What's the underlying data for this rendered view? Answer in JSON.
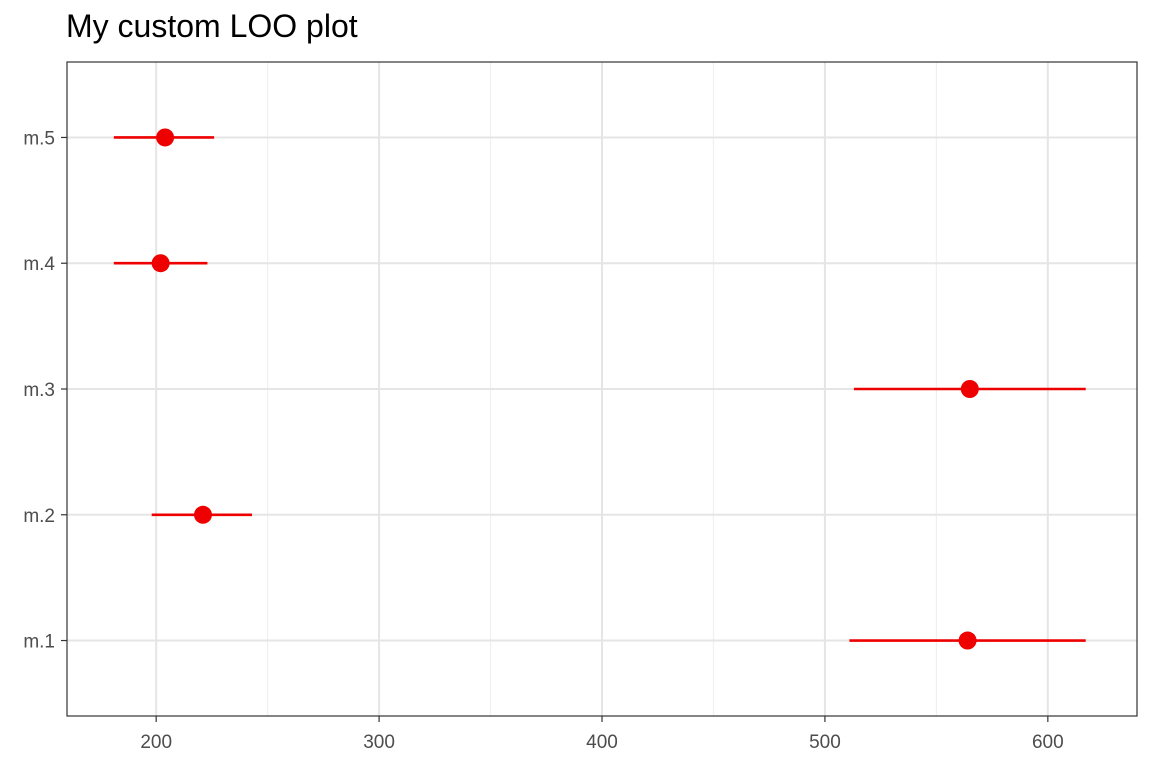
{
  "chart_data": {
    "type": "point-interval",
    "title": "My custom LOO plot",
    "xlabel": "",
    "ylabel": "",
    "xlim": [
      160,
      640
    ],
    "x_ticks": [
      200,
      300,
      400,
      500,
      600
    ],
    "x_minor_ticks": [
      250,
      350,
      450,
      550
    ],
    "categories": [
      "m.1",
      "m.2",
      "m.3",
      "m.4",
      "m.5"
    ],
    "points": [
      {
        "label": "m.1",
        "estimate": 564,
        "lower": 511,
        "upper": 617
      },
      {
        "label": "m.2",
        "estimate": 221,
        "lower": 198,
        "upper": 243
      },
      {
        "label": "m.3",
        "estimate": 565,
        "lower": 513,
        "upper": 617
      },
      {
        "label": "m.4",
        "estimate": 202,
        "lower": 181,
        "upper": 223
      },
      {
        "label": "m.5",
        "estimate": 204,
        "lower": 181,
        "upper": 226
      }
    ],
    "grid": true,
    "legend": "none",
    "colors": {
      "point": "#ee0000",
      "interval": "#ee0000",
      "grid_major": "#e5e5e5",
      "grid_minor": "#f0f0f0",
      "panel_border": "#333333",
      "tick_text": "#4d4d4d"
    }
  }
}
